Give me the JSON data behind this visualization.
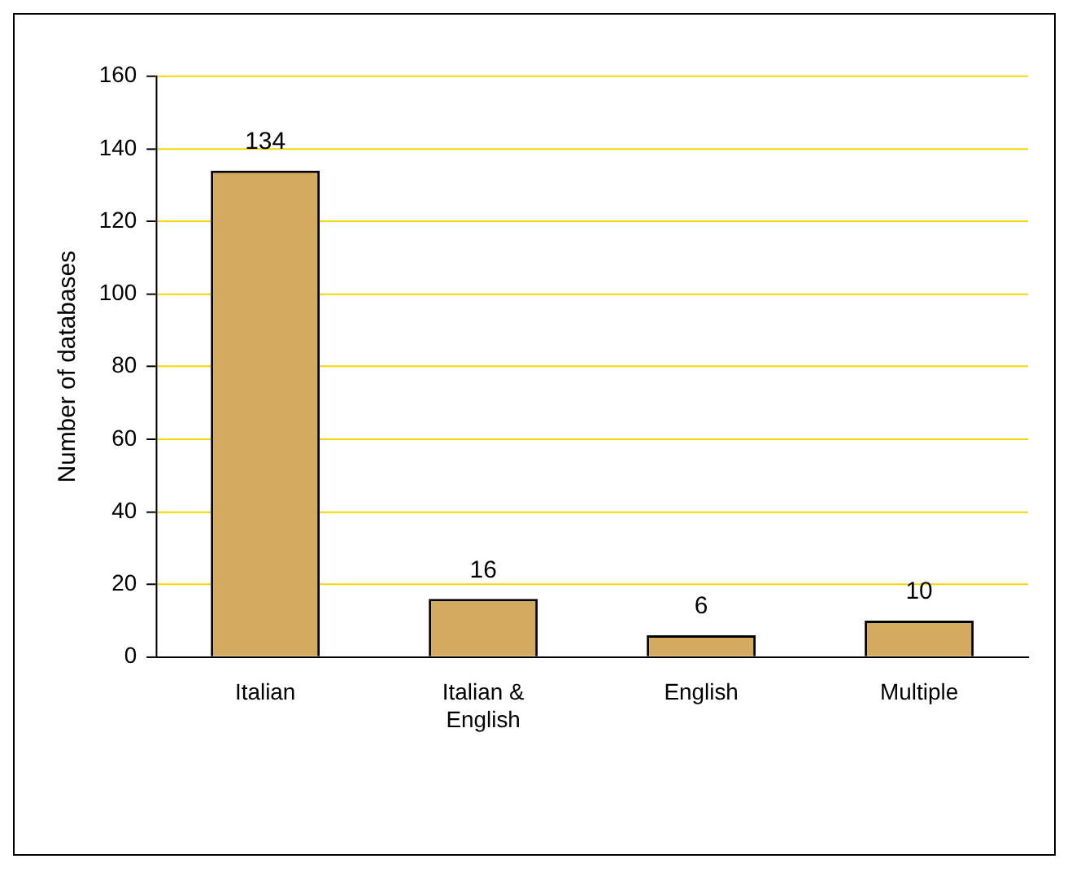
{
  "chart_data": {
    "type": "bar",
    "ylabel": "Number of databases",
    "categories": [
      "Italian",
      "Italian & English",
      "English",
      "Multiple"
    ],
    "values": [
      134,
      16,
      6,
      10
    ],
    "color": "#d4aa60",
    "ylim": [
      0,
      160
    ],
    "yticks": [
      0,
      20,
      40,
      60,
      80,
      100,
      120,
      140,
      160
    ],
    "grid": "y",
    "data_labels": true,
    "legend": false
  }
}
